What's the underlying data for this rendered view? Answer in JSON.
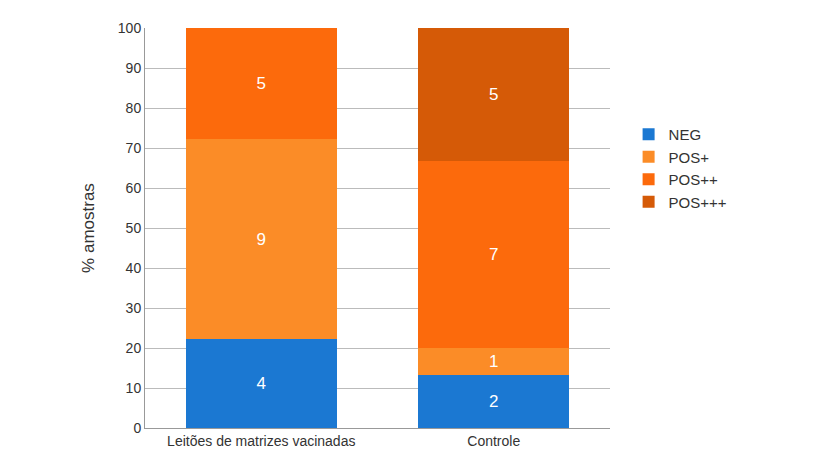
{
  "chart_data": {
    "type": "bar",
    "stacked": true,
    "y_label": "% amostras",
    "categories": [
      "Leitões de matrizes vacinadas",
      "Controle"
    ],
    "series": [
      {
        "name": "NEG",
        "color": "#1b78d2",
        "values": [
          22.2,
          13.3
        ],
        "counts": [
          4,
          2
        ]
      },
      {
        "name": "POS+",
        "color": "#fb8c27",
        "values": [
          50.0,
          6.7
        ],
        "counts": [
          9,
          1
        ]
      },
      {
        "name": "POS++",
        "color": "#fc6a0c",
        "values": [
          27.8,
          46.7
        ],
        "counts": [
          5,
          7
        ]
      },
      {
        "name": "POS+++",
        "color": "#d55a07",
        "values": [
          0,
          33.3
        ],
        "counts": [
          null,
          5
        ]
      }
    ],
    "ylim": [
      0,
      100
    ],
    "yticks": [
      0,
      10,
      20,
      30,
      40,
      50,
      60,
      70,
      80,
      90,
      100
    ],
    "grid": true,
    "legend": "right"
  }
}
